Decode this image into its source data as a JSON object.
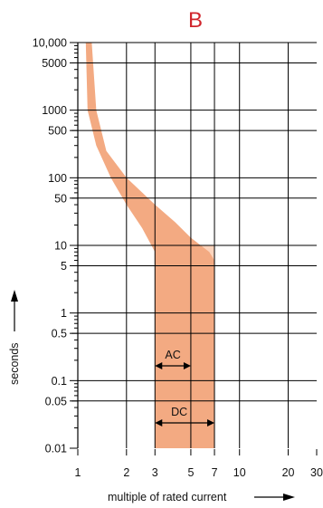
{
  "chart_data": {
    "type": "area",
    "title": "B",
    "xlabel": "multiple of rated current",
    "ylabel": "seconds",
    "x_scale": "log",
    "y_scale": "log",
    "xlim": [
      1,
      30
    ],
    "ylim": [
      0.01,
      10000
    ],
    "x_ticks": [
      {
        "value": 1,
        "label": "1"
      },
      {
        "value": 2,
        "label": "2"
      },
      {
        "value": 3,
        "label": "3"
      },
      {
        "value": 5,
        "label": "5"
      },
      {
        "value": 7,
        "label": "7"
      },
      {
        "value": 10,
        "label": "10"
      },
      {
        "value": 20,
        "label": "20"
      },
      {
        "value": 30,
        "label": "30"
      }
    ],
    "y_ticks": [
      {
        "value": 10000,
        "label": "10,000"
      },
      {
        "value": 5000,
        "label": "5000"
      },
      {
        "value": 1000,
        "label": "1000"
      },
      {
        "value": 500,
        "label": "500"
      },
      {
        "value": 100,
        "label": "100"
      },
      {
        "value": 50,
        "label": "50"
      },
      {
        "value": 10,
        "label": "10"
      },
      {
        "value": 5,
        "label": "5"
      },
      {
        "value": 1,
        "label": "1"
      },
      {
        "value": 0.5,
        "label": "0.5"
      },
      {
        "value": 0.1,
        "label": "0.1"
      },
      {
        "value": 0.05,
        "label": "0.05"
      },
      {
        "value": 0.01,
        "label": "0.01"
      }
    ],
    "grid": true,
    "band": {
      "upper_curve": [
        [
          1.22,
          10000
        ],
        [
          1.3,
          1000
        ],
        [
          1.5,
          250
        ],
        [
          2,
          100
        ],
        [
          3,
          40
        ],
        [
          4,
          22
        ],
        [
          5,
          13
        ],
        [
          6.5,
          8
        ],
        [
          7,
          6
        ],
        [
          7,
          0.01
        ]
      ],
      "lower_curve": [
        [
          1.12,
          10000
        ],
        [
          1.15,
          1000
        ],
        [
          1.3,
          300
        ],
        [
          1.6,
          100
        ],
        [
          2,
          40
        ],
        [
          2.5,
          18
        ],
        [
          3,
          8
        ],
        [
          3,
          0.01
        ]
      ]
    },
    "instantaneous_regions": [
      {
        "name": "AC",
        "x_range": [
          3,
          5
        ]
      },
      {
        "name": "DC",
        "x_range": [
          3,
          7
        ]
      }
    ],
    "colors": {
      "band": "#f3aa82",
      "ac_region": "#f3aa82",
      "dc_region": "#fcd4bd",
      "grid": "#000000",
      "title": "#d0252c"
    }
  }
}
